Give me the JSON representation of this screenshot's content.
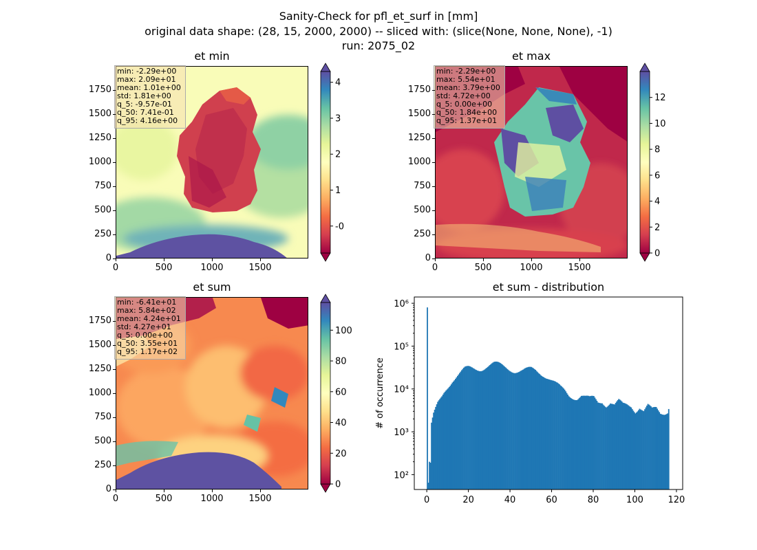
{
  "figure": {
    "title_line1": "Sanity-Check for pfl_et_surf in [mm]",
    "title_line2": "original data shape: (28, 15, 2000, 2000) -- sliced with: (slice(None, None, None), -1)",
    "title_line3": "run: 2075_02"
  },
  "colors": {
    "colormap": [
      "#9e0142",
      "#d53e4f",
      "#f46d43",
      "#fdae61",
      "#fee08b",
      "#ffffbf",
      "#e6f598",
      "#abdda4",
      "#66c2a5",
      "#3288bd",
      "#5e4fa2"
    ],
    "hist_bar": "#1f77b4"
  },
  "chart_data": [
    {
      "type": "heatmap",
      "title": "et min",
      "xticks": [
        "0",
        "500",
        "1000",
        "1500"
      ],
      "yticks": [
        "0",
        "250",
        "500",
        "750",
        "1000",
        "1250",
        "1500",
        "1750"
      ],
      "xlim": [
        0,
        2000
      ],
      "ylim": [
        0,
        2000
      ],
      "colorbar": {
        "min": -0.75,
        "max": 4.3,
        "ticks": [
          "-0",
          "1",
          "2",
          "3",
          "4"
        ],
        "tick_values": [
          0,
          1,
          2,
          3,
          4
        ]
      },
      "stats": [
        "min: -2.29e+00",
        "max: 2.09e+01",
        "mean: 1.01e+00",
        "std: 1.81e+00",
        "q_5: -9.57e-01",
        "q_50: 7.41e-01",
        "q_95: 4.16e+00"
      ]
    },
    {
      "type": "heatmap",
      "title": "et max",
      "xticks": [
        "0",
        "500",
        "1000",
        "1500"
      ],
      "yticks": [
        "0",
        "250",
        "500",
        "750",
        "1000",
        "1250",
        "1500",
        "1750"
      ],
      "xlim": [
        0,
        2000
      ],
      "ylim": [
        0,
        2000
      ],
      "colorbar": {
        "min": 0,
        "max": 14,
        "ticks": [
          "0",
          "2",
          "4",
          "6",
          "8",
          "10",
          "12"
        ],
        "tick_values": [
          0,
          2,
          4,
          6,
          8,
          10,
          12
        ]
      },
      "stats": [
        "min: -2.29e+00",
        "max: 5.54e+01",
        "mean: 3.79e+00",
        "std: 4.72e+00",
        "q_5: 0.00e+00",
        "q_50: 1.84e+00",
        "q_95: 1.37e+01"
      ]
    },
    {
      "type": "heatmap",
      "title": "et sum",
      "xticks": [
        "0",
        "500",
        "1000",
        "1500"
      ],
      "yticks": [
        "0",
        "250",
        "500",
        "750",
        "1000",
        "1250",
        "1500",
        "1750"
      ],
      "xlim": [
        0,
        2000
      ],
      "ylim": [
        0,
        2000
      ],
      "colorbar": {
        "min": 0,
        "max": 118,
        "ticks": [
          "0",
          "20",
          "40",
          "60",
          "80",
          "100"
        ],
        "tick_values": [
          0,
          20,
          40,
          60,
          80,
          100
        ]
      },
      "stats": [
        "min: -6.41e+01",
        "max: 5.84e+02",
        "mean: 4.24e+01",
        "std: 4.27e+01",
        "q_5: 0.00e+00",
        "q_50: 3.55e+01",
        "q_95: 1.17e+02"
      ]
    },
    {
      "type": "bar",
      "title": "et sum - distribution",
      "ylabel": "# of occurrence",
      "xlabel": "",
      "yscale": "log",
      "xlim": [
        -6,
        123
      ],
      "ylim": [
        45,
        1400000
      ],
      "xticks": [
        0,
        20,
        40,
        60,
        80,
        100,
        120
      ],
      "yticks": [
        {
          "v": 100,
          "label": "10²"
        },
        {
          "v": 1000,
          "label": "10³"
        },
        {
          "v": 10000,
          "label": "10⁴"
        },
        {
          "v": 100000,
          "label": "10⁵"
        },
        {
          "v": 1000000,
          "label": "10⁶"
        }
      ],
      "bin_width": 0.5,
      "points": [
        [
          0,
          800000
        ],
        [
          0.5,
          65
        ],
        [
          1,
          200
        ],
        [
          1.5,
          190
        ],
        [
          2,
          1400
        ],
        [
          3,
          2300
        ],
        [
          4,
          3100
        ],
        [
          5,
          4200
        ],
        [
          6,
          5200
        ],
        [
          7,
          6500
        ],
        [
          8,
          8500
        ],
        [
          9,
          10500
        ],
        [
          10,
          12500
        ],
        [
          12,
          17000
        ],
        [
          14,
          20000
        ],
        [
          16,
          23000
        ],
        [
          18,
          27000
        ],
        [
          20,
          29000
        ],
        [
          22,
          30000
        ],
        [
          24,
          31000
        ],
        [
          26,
          32000
        ],
        [
          28,
          34000
        ],
        [
          30,
          35000
        ],
        [
          32,
          36000
        ],
        [
          34,
          35000
        ],
        [
          36,
          34000
        ],
        [
          38,
          33000
        ],
        [
          40,
          31000
        ],
        [
          42,
          28000
        ],
        [
          44,
          26000
        ],
        [
          46,
          25000
        ],
        [
          48,
          26000
        ],
        [
          50,
          28000
        ],
        [
          52,
          28000
        ],
        [
          54,
          26000
        ],
        [
          56,
          23000
        ],
        [
          58,
          19000
        ],
        [
          60,
          15000
        ],
        [
          62,
          12000
        ],
        [
          64,
          10000
        ],
        [
          66,
          9000
        ],
        [
          68,
          7500
        ],
        [
          70,
          7000
        ],
        [
          72,
          6500
        ],
        [
          74,
          7000
        ],
        [
          76,
          6000
        ],
        [
          78,
          5500
        ],
        [
          80,
          6000
        ],
        [
          82,
          5000
        ],
        [
          84,
          5500
        ],
        [
          86,
          4500
        ],
        [
          88,
          5000
        ],
        [
          90,
          4000
        ],
        [
          92,
          4800
        ],
        [
          94,
          4000
        ],
        [
          96,
          4200
        ],
        [
          98,
          4200
        ],
        [
          100,
          3300
        ],
        [
          102,
          4000
        ],
        [
          104,
          3000
        ],
        [
          106,
          3800
        ],
        [
          108,
          3000
        ],
        [
          110,
          3400
        ],
        [
          112,
          2800
        ],
        [
          114,
          3000
        ],
        [
          116,
          3400
        ]
      ]
    }
  ]
}
